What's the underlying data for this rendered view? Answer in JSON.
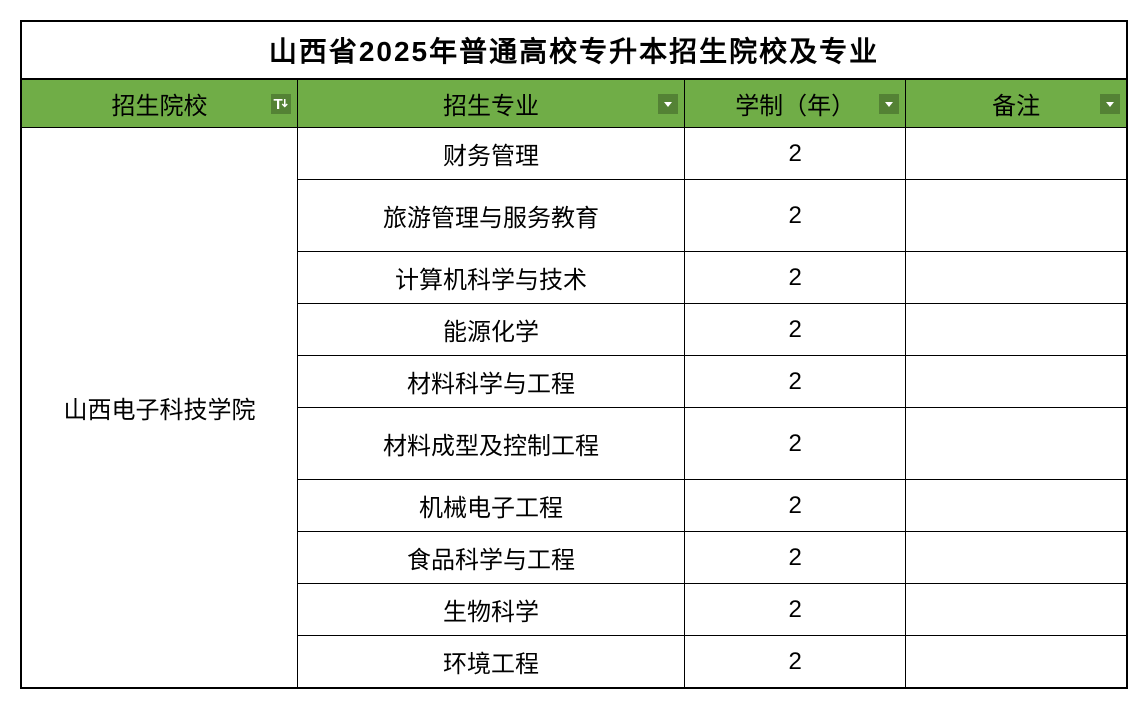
{
  "table": {
    "title": "山西省2025年普通高校专升本招生院校及专业",
    "columns": [
      {
        "label": "招生院校",
        "width": "25%"
      },
      {
        "label": "招生专业",
        "width": "35%"
      },
      {
        "label": "学制（年）",
        "width": "20%"
      },
      {
        "label": "备注",
        "width": "20%"
      }
    ],
    "school": "山西电子科技学院",
    "rows": [
      {
        "major": "财务管理",
        "years": "2",
        "notes": "",
        "height": "normal"
      },
      {
        "major": "旅游管理与服务教育",
        "years": "2",
        "notes": "",
        "height": "tall"
      },
      {
        "major": "计算机科学与技术",
        "years": "2",
        "notes": "",
        "height": "normal"
      },
      {
        "major": "能源化学",
        "years": "2",
        "notes": "",
        "height": "normal"
      },
      {
        "major": "材料科学与工程",
        "years": "2",
        "notes": "",
        "height": "normal"
      },
      {
        "major": "材料成型及控制工程",
        "years": "2",
        "notes": "",
        "height": "tall"
      },
      {
        "major": "机械电子工程",
        "years": "2",
        "notes": "",
        "height": "normal"
      },
      {
        "major": "食品科学与工程",
        "years": "2",
        "notes": "",
        "height": "normal"
      },
      {
        "major": "生物科学",
        "years": "2",
        "notes": "",
        "height": "normal"
      },
      {
        "major": "环境工程",
        "years": "2",
        "notes": "",
        "height": "normal"
      }
    ],
    "styling": {
      "header_bg_color": "#70ad47",
      "filter_icon_bg": "#548235",
      "border_color": "#000000",
      "title_fontsize": 28,
      "header_fontsize": 24,
      "cell_fontsize": 24,
      "background_color": "#ffffff"
    }
  }
}
